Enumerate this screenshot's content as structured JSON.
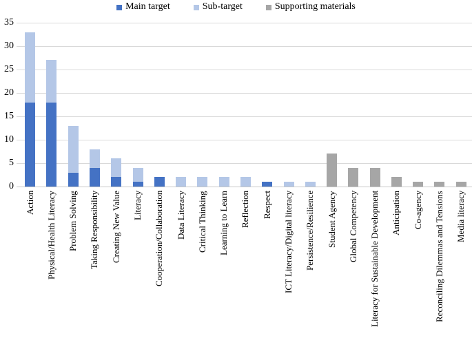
{
  "legend": [
    {
      "label": "Main target",
      "color": "#4472C4"
    },
    {
      "label": "Sub-target",
      "color": "#B4C7E7"
    },
    {
      "label": "Supporting materials",
      "color": "#A6A6A6"
    }
  ],
  "chart_data": {
    "type": "bar",
    "stacked": true,
    "title": "",
    "xlabel": "",
    "ylabel": "",
    "ylim": [
      0,
      35
    ],
    "y_ticks": [
      0,
      5,
      10,
      15,
      20,
      25,
      30,
      35
    ],
    "grid": true,
    "legend_position": "top",
    "categories": [
      "Action",
      "Physical/Health Literacy",
      "Problem Solving",
      "Taking Responsibility",
      "Creating New Value",
      "Literacy",
      "Cooperation/Collaboration",
      "Data Literacy",
      "Critical Thinking",
      "Learning to Learn",
      "Reflection",
      "Respect",
      "ICT Literacy/Digital literacy",
      "Persistence/Resilience",
      "Student Agency",
      "Global Competency",
      "Literacy for Sustainable Development",
      "Anticipation",
      "Co-agency",
      "Reconciling Dilemmas and Tensions",
      "Media literacy"
    ],
    "series": [
      {
        "name": "Main target",
        "color": "#4472C4",
        "values": [
          18,
          18,
          3,
          4,
          2,
          1,
          2,
          0,
          0,
          0,
          0,
          1,
          0,
          0,
          0,
          0,
          0,
          0,
          0,
          0,
          0
        ]
      },
      {
        "name": "Sub-target",
        "color": "#B4C7E7",
        "values": [
          15,
          9,
          10,
          4,
          4,
          3,
          0,
          2,
          2,
          2,
          2,
          0,
          1,
          1,
          0,
          0,
          0,
          0,
          0,
          0,
          0
        ]
      },
      {
        "name": "Supporting materials",
        "color": "#A6A6A6",
        "values": [
          0,
          0,
          0,
          0,
          0,
          0,
          0,
          0,
          0,
          0,
          0,
          0,
          0,
          0,
          7,
          4,
          4,
          2,
          1,
          1,
          1
        ]
      }
    ]
  },
  "colors": {
    "gridline": "#D9D9D9",
    "baseline": "#C6C6C6",
    "background": "#FFFFFF",
    "text": "#000000"
  }
}
